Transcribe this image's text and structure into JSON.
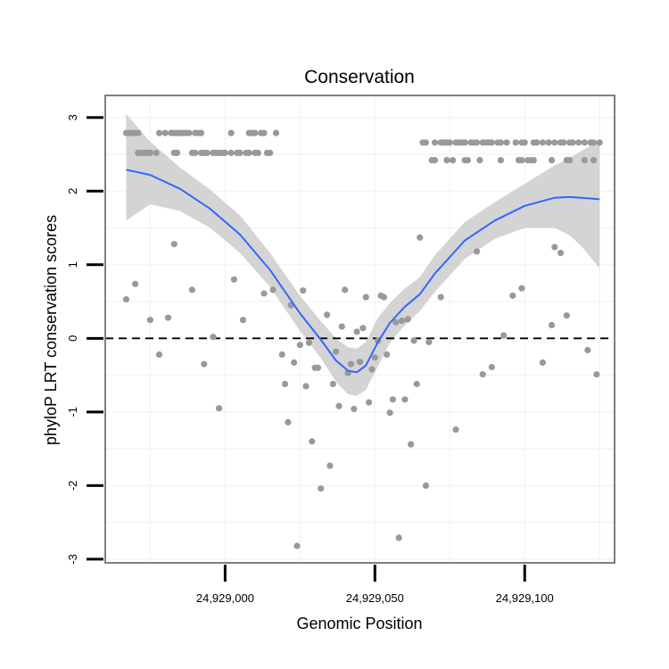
{
  "chart_data": {
    "type": "scatter",
    "title": "Conservation",
    "xlabel": "Genomic Position",
    "ylabel": "phyloP LRT conservation scores",
    "xlim": [
      24928960,
      24929130
    ],
    "ylim": [
      -3.05,
      3.3
    ],
    "x_ticks": [
      {
        "value": 24929000,
        "label": "24,929,000"
      },
      {
        "value": 24929050,
        "label": "24,929,050"
      },
      {
        "value": 24929100,
        "label": "24,929,100"
      }
    ],
    "y_ticks": [
      {
        "value": -3,
        "label": "-3"
      },
      {
        "value": -2,
        "label": "-2"
      },
      {
        "value": -1,
        "label": "-1"
      },
      {
        "value": 0,
        "label": "0"
      },
      {
        "value": 1,
        "label": "1"
      },
      {
        "value": 2,
        "label": "2"
      },
      {
        "value": 3,
        "label": "3"
      }
    ],
    "x_minor_grid": [
      24928975,
      24929025,
      24929075,
      24929125
    ],
    "y_minor_grid": [
      -2.5,
      -1.5,
      -0.5,
      0.5,
      1.5,
      2.5
    ],
    "reference_line": {
      "y": 0,
      "style": "dashed"
    },
    "points": [
      [
        24928967,
        2.79
      ],
      [
        24928968,
        2.79
      ],
      [
        24928969,
        2.79
      ],
      [
        24928970,
        2.79
      ],
      [
        24928971,
        2.79
      ],
      [
        24928978,
        2.79
      ],
      [
        24928980,
        2.79
      ],
      [
        24928982,
        2.79
      ],
      [
        24928983,
        2.79
      ],
      [
        24928984,
        2.79
      ],
      [
        24928985,
        2.79
      ],
      [
        24928986,
        2.79
      ],
      [
        24928987,
        2.79
      ],
      [
        24928988,
        2.79
      ],
      [
        24928990,
        2.79
      ],
      [
        24928991,
        2.79
      ],
      [
        24928992,
        2.79
      ],
      [
        24929002,
        2.79
      ],
      [
        24929008,
        2.79
      ],
      [
        24929009,
        2.79
      ],
      [
        24929010,
        2.79
      ],
      [
        24929012,
        2.79
      ],
      [
        24929013,
        2.79
      ],
      [
        24929017,
        2.79
      ],
      [
        24928971,
        2.52
      ],
      [
        24928972,
        2.52
      ],
      [
        24928973,
        2.52
      ],
      [
        24928974,
        2.52
      ],
      [
        24928975,
        2.52
      ],
      [
        24928977,
        2.52
      ],
      [
        24928983,
        2.52
      ],
      [
        24928984,
        2.52
      ],
      [
        24928989,
        2.52
      ],
      [
        24928990,
        2.52
      ],
      [
        24928992,
        2.52
      ],
      [
        24928993,
        2.52
      ],
      [
        24928994,
        2.52
      ],
      [
        24928996,
        2.52
      ],
      [
        24928997,
        2.52
      ],
      [
        24928998,
        2.52
      ],
      [
        24928999,
        2.52
      ],
      [
        24929000,
        2.52
      ],
      [
        24929002,
        2.52
      ],
      [
        24929004,
        2.52
      ],
      [
        24929005,
        2.52
      ],
      [
        24929007,
        2.52
      ],
      [
        24929008,
        2.52
      ],
      [
        24929010,
        2.52
      ],
      [
        24929011,
        2.52
      ],
      [
        24929014,
        2.52
      ],
      [
        24929015,
        2.52
      ],
      [
        24929066,
        2.66
      ],
      [
        24929067,
        2.66
      ],
      [
        24929070,
        2.66
      ],
      [
        24929072,
        2.66
      ],
      [
        24929073,
        2.66
      ],
      [
        24929074,
        2.66
      ],
      [
        24929075,
        2.66
      ],
      [
        24929077,
        2.66
      ],
      [
        24929078,
        2.66
      ],
      [
        24929079,
        2.66
      ],
      [
        24929080,
        2.66
      ],
      [
        24929082,
        2.66
      ],
      [
        24929083,
        2.66
      ],
      [
        24929084,
        2.66
      ],
      [
        24929086,
        2.66
      ],
      [
        24929087,
        2.66
      ],
      [
        24929088,
        2.66
      ],
      [
        24929089,
        2.66
      ],
      [
        24929091,
        2.66
      ],
      [
        24929092,
        2.66
      ],
      [
        24929094,
        2.66
      ],
      [
        24929097,
        2.66
      ],
      [
        24929099,
        2.66
      ],
      [
        24929100,
        2.66
      ],
      [
        24929103,
        2.66
      ],
      [
        24929104,
        2.66
      ],
      [
        24929106,
        2.66
      ],
      [
        24929108,
        2.66
      ],
      [
        24929110,
        2.66
      ],
      [
        24929112,
        2.66
      ],
      [
        24929113,
        2.66
      ],
      [
        24929115,
        2.66
      ],
      [
        24929116,
        2.66
      ],
      [
        24929118,
        2.66
      ],
      [
        24929120,
        2.66
      ],
      [
        24929122,
        2.66
      ],
      [
        24929123,
        2.66
      ],
      [
        24929125,
        2.66
      ],
      [
        24929069,
        2.42
      ],
      [
        24929070,
        2.42
      ],
      [
        24929074,
        2.42
      ],
      [
        24929076,
        2.42
      ],
      [
        24929080,
        2.42
      ],
      [
        24929081,
        2.42
      ],
      [
        24929085,
        2.42
      ],
      [
        24929092,
        2.42
      ],
      [
        24929098,
        2.42
      ],
      [
        24929099,
        2.42
      ],
      [
        24929101,
        2.42
      ],
      [
        24929102,
        2.42
      ],
      [
        24929103,
        2.42
      ],
      [
        24929109,
        2.42
      ],
      [
        24929114,
        2.42
      ],
      [
        24929115,
        2.42
      ],
      [
        24929120,
        2.42
      ],
      [
        24929123,
        2.42
      ],
      [
        24928967,
        0.53
      ],
      [
        24928970,
        0.74
      ],
      [
        24928975,
        0.25
      ],
      [
        24928978,
        -0.22
      ],
      [
        24928981,
        0.28
      ],
      [
        24928983,
        1.28
      ],
      [
        24928989,
        0.66
      ],
      [
        24928993,
        -0.35
      ],
      [
        24928996,
        0.02
      ],
      [
        24928998,
        -0.95
      ],
      [
        24929003,
        0.8
      ],
      [
        24929006,
        0.25
      ],
      [
        24929013,
        0.61
      ],
      [
        24929016,
        0.66
      ],
      [
        24929019,
        -0.22
      ],
      [
        24929020,
        -0.62
      ],
      [
        24929021,
        -1.14
      ],
      [
        24929022,
        0.45
      ],
      [
        24929023,
        -0.33
      ],
      [
        24929024,
        -2.82
      ],
      [
        24929025,
        -0.09
      ],
      [
        24929026,
        0.65
      ],
      [
        24929027,
        -0.65
      ],
      [
        24929028,
        -0.06
      ],
      [
        24929029,
        -1.4
      ],
      [
        24929030,
        -0.4
      ],
      [
        24929031,
        -0.4
      ],
      [
        24929032,
        -2.04
      ],
      [
        24929034,
        0.32
      ],
      [
        24929035,
        -1.73
      ],
      [
        24929036,
        -0.62
      ],
      [
        24929037,
        -0.18
      ],
      [
        24929038,
        -0.92
      ],
      [
        24929039,
        0.16
      ],
      [
        24929040,
        0.66
      ],
      [
        24929041,
        -0.47
      ],
      [
        24929042,
        -0.35
      ],
      [
        24929043,
        -0.96
      ],
      [
        24929044,
        0.09
      ],
      [
        24929045,
        -0.32
      ],
      [
        24929046,
        0.14
      ],
      [
        24929047,
        0.56
      ],
      [
        24929048,
        -0.87
      ],
      [
        24929049,
        -0.42
      ],
      [
        24929050,
        -0.26
      ],
      [
        24929051,
        -0.03
      ],
      [
        24929052,
        0.58
      ],
      [
        24929053,
        0.56
      ],
      [
        24929054,
        -0.22
      ],
      [
        24929055,
        -1.01
      ],
      [
        24929056,
        -0.83
      ],
      [
        24929057,
        0.22
      ],
      [
        24929058,
        -2.71
      ],
      [
        24929059,
        0.24
      ],
      [
        24929060,
        -0.83
      ],
      [
        24929061,
        0.26
      ],
      [
        24929062,
        -1.44
      ],
      [
        24929063,
        -0.03
      ],
      [
        24929064,
        -0.62
      ],
      [
        24929065,
        1.37
      ],
      [
        24929067,
        -2.0
      ],
      [
        24929068,
        -0.05
      ],
      [
        24929072,
        0.56
      ],
      [
        24929077,
        -1.24
      ],
      [
        24929084,
        1.18
      ],
      [
        24929086,
        -0.49
      ],
      [
        24929089,
        -0.39
      ],
      [
        24929093,
        0.04
      ],
      [
        24929096,
        0.58
      ],
      [
        24929099,
        0.68
      ],
      [
        24929106,
        -0.33
      ],
      [
        24929109,
        0.18
      ],
      [
        24929110,
        1.24
      ],
      [
        24929112,
        1.16
      ],
      [
        24929114,
        0.31
      ],
      [
        24929121,
        -0.16
      ],
      [
        24929124,
        -0.49
      ]
    ],
    "smooth": {
      "method": "loess",
      "x": [
        24928967,
        24928975,
        24928985,
        24928995,
        24929005,
        24929015,
        24929025,
        24929032,
        24929037,
        24929041,
        24929044,
        24929047,
        24929051,
        24929055,
        24929060,
        24929065,
        24929070,
        24929080,
        24929090,
        24929100,
        24929110,
        24929115,
        24929119,
        24929125
      ],
      "y": [
        2.29,
        2.22,
        2.03,
        1.76,
        1.41,
        0.93,
        0.34,
        -0.02,
        -0.3,
        -0.44,
        -0.46,
        -0.37,
        -0.05,
        0.21,
        0.43,
        0.6,
        0.88,
        1.33,
        1.6,
        1.8,
        1.91,
        1.92,
        1.91,
        1.89
      ],
      "lower": [
        1.6,
        1.82,
        1.73,
        1.5,
        1.16,
        0.7,
        0.1,
        -0.27,
        -0.59,
        -0.76,
        -0.78,
        -0.7,
        -0.38,
        -0.06,
        0.18,
        0.37,
        0.63,
        1.08,
        1.35,
        1.5,
        1.5,
        1.4,
        1.25,
        0.95
      ],
      "upper": [
        3.05,
        2.67,
        2.32,
        2.02,
        1.67,
        1.16,
        0.58,
        0.23,
        0.0,
        -0.12,
        -0.14,
        -0.05,
        0.28,
        0.48,
        0.68,
        0.83,
        1.13,
        1.58,
        1.85,
        2.1,
        2.35,
        2.45,
        2.55,
        2.68
      ]
    },
    "colors": {
      "points": "#999999",
      "smooth_line": "#3366FF",
      "ribbon": "#cccccc",
      "panel_border": "#7f7f7f",
      "grid": "#f2f2f2",
      "reference_line": "#000000",
      "axis_ticks": "#000000"
    },
    "grid": true
  }
}
